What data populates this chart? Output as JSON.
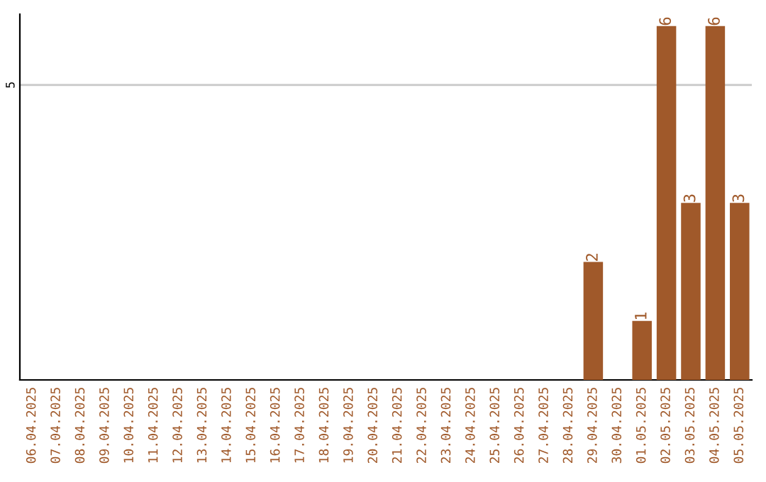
{
  "chart_data": {
    "type": "bar",
    "categories": [
      "06.04.2025",
      "07.04.2025",
      "08.04.2025",
      "09.04.2025",
      "10.04.2025",
      "11.04.2025",
      "12.04.2025",
      "13.04.2025",
      "14.04.2025",
      "15.04.2025",
      "16.04.2025",
      "17.04.2025",
      "18.04.2025",
      "19.04.2025",
      "20.04.2025",
      "21.04.2025",
      "22.04.2025",
      "23.04.2025",
      "24.04.2025",
      "25.04.2025",
      "26.04.2025",
      "27.04.2025",
      "28.04.2025",
      "29.04.2025",
      "30.04.2025",
      "01.05.2025",
      "02.05.2025",
      "03.05.2025",
      "04.05.2025",
      "05.05.2025"
    ],
    "values": [
      null,
      null,
      null,
      null,
      null,
      null,
      null,
      null,
      null,
      null,
      null,
      null,
      null,
      null,
      null,
      null,
      null,
      null,
      null,
      null,
      null,
      null,
      null,
      2,
      null,
      1,
      6,
      3,
      6,
      3
    ],
    "data_labels": true,
    "color": "#a0592a",
    "ylim": [
      0,
      6.2
    ],
    "ref_lines": [
      {
        "axis": "y",
        "value": 5,
        "label": "5",
        "color": "#c8c8c8"
      }
    ]
  }
}
